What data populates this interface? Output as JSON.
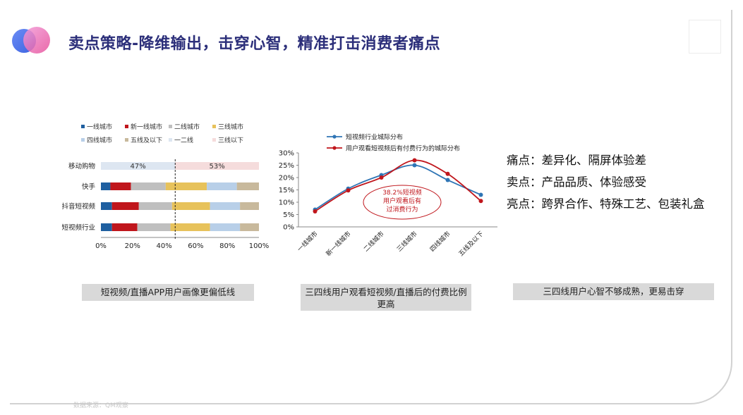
{
  "title": "卖点策略-降维输出，击穿心智，精准打击消费者痛点",
  "captions": {
    "left": "短视频/直播APP用户画像更偏低线",
    "middle": "三四线用户观看短视频/直播后的付费比例更高",
    "right": "三四线用户心智不够成熟，更易击穿"
  },
  "points": [
    {
      "label": "痛点：",
      "text": "差异化、隔屏体验差"
    },
    {
      "label": "卖点：",
      "text": "产品品质、体验感受"
    },
    {
      "label": "亮点：",
      "text": "跨界合作、特殊工艺、包装礼盒"
    }
  ],
  "footer": "数据来源：QM观察",
  "colors": {
    "title": "#2c2f7a",
    "caption_bg": "#d9d9d9"
  },
  "chart_data": [
    {
      "type": "bar",
      "orientation": "horizontal",
      "stacked": true,
      "legend": "top",
      "categories": [
        "移动购物",
        "快手",
        "抖音短视频",
        "短视频行业"
      ],
      "series": [
        {
          "name": "一线城市",
          "color": "#1f5fa0",
          "values": [
            null,
            6,
            7,
            7
          ]
        },
        {
          "name": "新一线城市",
          "color": "#c0161c",
          "values": [
            null,
            13,
            17,
            16
          ]
        },
        {
          "name": "二线城市",
          "color": "#bfbfbf",
          "values": [
            null,
            22,
            21,
            21
          ]
        },
        {
          "name": "三线城市",
          "color": "#e7c25b",
          "values": [
            null,
            26,
            24,
            25
          ]
        },
        {
          "name": "四线城市",
          "color": "#b8cfe8",
          "values": [
            null,
            19,
            19,
            19
          ]
        },
        {
          "name": "五线及以下",
          "color": "#c8b99c",
          "values": [
            null,
            14,
            12,
            12
          ]
        },
        {
          "name": "一二线",
          "color": "#dde6f1",
          "values": [
            47,
            null,
            null,
            null
          ]
        },
        {
          "name": "三线以下",
          "color": "#f5dcdc",
          "values": [
            53,
            null,
            null,
            null
          ]
        }
      ],
      "data_labels": [
        "47%",
        "53%"
      ],
      "xticks": [
        "0%",
        "20%",
        "40%",
        "60%",
        "80%",
        "100%"
      ],
      "xlim": [
        0,
        100
      ],
      "reference_line": {
        "x": 47,
        "style": "dashed"
      }
    },
    {
      "type": "line",
      "legend": "top",
      "categories": [
        "一线城市",
        "新一线城市",
        "二线城市",
        "三线城市",
        "四线城市",
        "五线及以下"
      ],
      "series": [
        {
          "name": "短视频行业城际分布",
          "color": "#2f75b5",
          "values": [
            7,
            15.5,
            21,
            25,
            19,
            13
          ]
        },
        {
          "name": "用户观看短视频后有付费行为的城际分布",
          "color": "#c0161c",
          "values": [
            6.3,
            14.8,
            20,
            27,
            21.5,
            10.5
          ]
        }
      ],
      "yticks": [
        "0%",
        "5%",
        "10%",
        "15%",
        "20%",
        "25%",
        "30%"
      ],
      "ylim": [
        0,
        30
      ],
      "annotation": [
        "38.2%短视频",
        "用户观看后有",
        "过消费行为"
      ]
    }
  ]
}
